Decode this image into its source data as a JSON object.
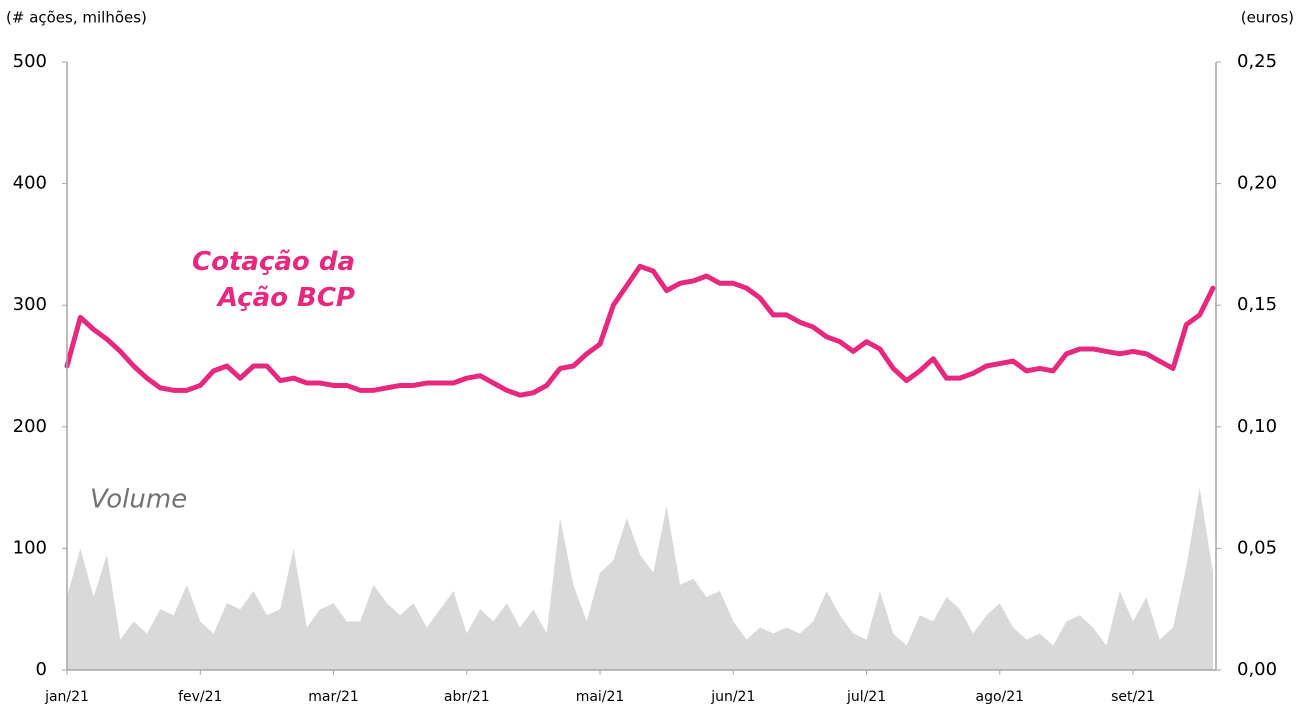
{
  "chart_data": {
    "type": "area-line",
    "y_label": "(# ações, milhões)",
    "y2_label": "(euros)",
    "categories": [
      "jan/21",
      null,
      null,
      null,
      null,
      null,
      null,
      null,
      null,
      null,
      "fev/21",
      null,
      null,
      null,
      null,
      null,
      null,
      null,
      null,
      null,
      "mar/21",
      null,
      null,
      null,
      null,
      null,
      null,
      null,
      null,
      null,
      "abr/21",
      null,
      null,
      null,
      null,
      null,
      null,
      null,
      null,
      null,
      "mai/21",
      null,
      null,
      null,
      null,
      null,
      null,
      null,
      null,
      null,
      "jun/21",
      null,
      null,
      null,
      null,
      null,
      null,
      null,
      null,
      null,
      "jul/21",
      null,
      null,
      null,
      null,
      null,
      null,
      null,
      null,
      null,
      "ago/21",
      null,
      null,
      null,
      null,
      null,
      null,
      null,
      null,
      null,
      "set/21",
      null,
      null,
      null,
      null,
      null,
      null
    ],
    "series": [
      {
        "name": "Volume",
        "kind": "area",
        "color": "#d9d9d9",
        "values": [
          60,
          100,
          60,
          95,
          25,
          40,
          30,
          50,
          45,
          70,
          40,
          30,
          55,
          50,
          65,
          45,
          50,
          100,
          35,
          50,
          55,
          40,
          40,
          70,
          55,
          45,
          55,
          35,
          50,
          65,
          30,
          50,
          40,
          55,
          35,
          50,
          30,
          125,
          70,
          40,
          80,
          90,
          125,
          95,
          80,
          135,
          70,
          75,
          60,
          65,
          40,
          25,
          35,
          30,
          35,
          30,
          40,
          65,
          45,
          30,
          25,
          65,
          30,
          20,
          45,
          40,
          60,
          50,
          30,
          45,
          55,
          35,
          25,
          30,
          20,
          40,
          45,
          35,
          20,
          65,
          40,
          60,
          25,
          35,
          85,
          150,
          80
        ]
      },
      {
        "name": "Cotação da Ação BCP",
        "kind": "line",
        "color": "#e6287f",
        "axis": "y2",
        "values": [
          0.125,
          0.145,
          0.14,
          0.136,
          0.131,
          0.125,
          0.12,
          0.116,
          0.115,
          0.115,
          0.117,
          0.123,
          0.125,
          0.12,
          0.125,
          0.125,
          0.119,
          0.12,
          0.118,
          0.118,
          0.117,
          0.117,
          0.115,
          0.115,
          0.116,
          0.117,
          0.117,
          0.118,
          0.118,
          0.118,
          0.12,
          0.121,
          0.118,
          0.115,
          0.113,
          0.114,
          0.117,
          0.124,
          0.125,
          0.13,
          0.134,
          0.15,
          0.158,
          0.166,
          0.164,
          0.156,
          0.159,
          0.16,
          0.162,
          0.159,
          0.159,
          0.157,
          0.153,
          0.146,
          0.146,
          0.143,
          0.141,
          0.137,
          0.135,
          0.131,
          0.135,
          0.132,
          0.124,
          0.119,
          0.123,
          0.128,
          0.12,
          0.12,
          0.122,
          0.125,
          0.126,
          0.127,
          0.123,
          0.124,
          0.123,
          0.13,
          0.132,
          0.132,
          0.131,
          0.13,
          0.131,
          0.13,
          0.127,
          0.124,
          0.142,
          0.146,
          0.157
        ]
      }
    ],
    "ylim": [
      0,
      500
    ],
    "yticks": [
      0,
      100,
      200,
      300,
      400,
      500
    ],
    "y2lim": [
      0,
      0.25
    ],
    "y2ticks": [
      {
        "value": 0,
        "label": "0,00"
      },
      {
        "value": 0.05,
        "label": "0,05"
      },
      {
        "value": 0.1,
        "label": "0,10"
      },
      {
        "value": 0.15,
        "label": "0,15"
      },
      {
        "value": 0.2,
        "label": "0,20"
      },
      {
        "value": 0.25,
        "label": "0,25"
      }
    ]
  }
}
